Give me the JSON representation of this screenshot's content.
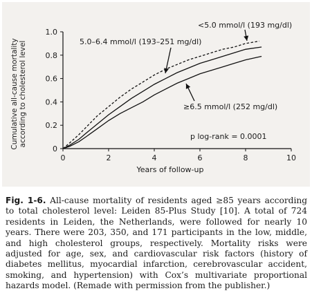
{
  "chart_data": {
    "type": "line",
    "xlabel": "Years of follow-up",
    "ylabel_line1": "Cumulative all-cause mortality",
    "ylabel_line2": "according  to cholesterol level",
    "xlim": [
      0,
      10
    ],
    "ylim": [
      0,
      1.0
    ],
    "x_ticks": [
      "0",
      "2",
      "4",
      "6",
      "8",
      "10"
    ],
    "y_ticks": [
      "0",
      "0.2",
      "0.4",
      "0.6",
      "0.8",
      "1.0"
    ],
    "grid": false,
    "series": [
      {
        "name": "<5.0 mmol/l (193 mg/dl)",
        "style": "dashed",
        "points": [
          [
            0,
            0
          ],
          [
            0.3,
            0.05
          ],
          [
            0.7,
            0.12
          ],
          [
            1.0,
            0.18
          ],
          [
            1.5,
            0.28
          ],
          [
            2,
            0.36
          ],
          [
            2.5,
            0.44
          ],
          [
            3,
            0.51
          ],
          [
            3.5,
            0.57
          ],
          [
            4,
            0.63
          ],
          [
            4.5,
            0.68
          ],
          [
            5,
            0.72
          ],
          [
            5.5,
            0.76
          ],
          [
            6,
            0.79
          ],
          [
            6.5,
            0.82
          ],
          [
            7,
            0.85
          ],
          [
            7.5,
            0.87
          ],
          [
            8,
            0.9
          ],
          [
            8.6,
            0.92
          ]
        ]
      },
      {
        "name": "5.0–6.4 mmol/l (193–251 mg/dl)",
        "style": "solid",
        "points": [
          [
            0,
            0
          ],
          [
            0.3,
            0.03
          ],
          [
            0.7,
            0.08
          ],
          [
            1.0,
            0.13
          ],
          [
            1.5,
            0.21
          ],
          [
            2,
            0.29
          ],
          [
            2.5,
            0.36
          ],
          [
            3,
            0.43
          ],
          [
            3.5,
            0.49
          ],
          [
            4,
            0.55
          ],
          [
            4.5,
            0.6
          ],
          [
            5,
            0.65
          ],
          [
            5.5,
            0.69
          ],
          [
            6,
            0.73
          ],
          [
            6.5,
            0.76
          ],
          [
            7,
            0.79
          ],
          [
            7.5,
            0.82
          ],
          [
            8,
            0.85
          ],
          [
            8.7,
            0.87
          ]
        ]
      },
      {
        "name": "≥6.5 mmol/l (252 mg/dl)",
        "style": "solid",
        "points": [
          [
            0,
            0
          ],
          [
            0.3,
            0.02
          ],
          [
            0.7,
            0.06
          ],
          [
            1.0,
            0.1
          ],
          [
            1.5,
            0.17
          ],
          [
            2,
            0.24
          ],
          [
            2.5,
            0.3
          ],
          [
            3,
            0.35
          ],
          [
            3.5,
            0.4
          ],
          [
            4,
            0.46
          ],
          [
            4.5,
            0.51
          ],
          [
            5,
            0.56
          ],
          [
            5.5,
            0.6
          ],
          [
            6,
            0.64
          ],
          [
            6.5,
            0.67
          ],
          [
            7,
            0.7
          ],
          [
            7.5,
            0.73
          ],
          [
            8,
            0.76
          ],
          [
            8.7,
            0.79
          ]
        ]
      }
    ],
    "annotations": {
      "pval": "p log-rank = 0.0001"
    }
  },
  "caption": {
    "label": "Fig. 1-6.",
    "text": " All-cause mortality of residents aged ≥85 years according to total cholesterol level: Leiden 85-Plus Study [10]. A total of 724 residents in Leiden, the Netherlands, were followed for nearly 10 years. There were 203, 350, and 171 participants in the low, middle, and high cholesterol groups, respectively. Mortality risks were adjusted for age, sex, and cardiovascular risk factors (history of diabetes mellitus, myocardial infarction, cerebrovascular accident, smoking, and hypertension) with Cox’s multivariate proportional hazards model. (Remade with permission from the publisher.)"
  }
}
